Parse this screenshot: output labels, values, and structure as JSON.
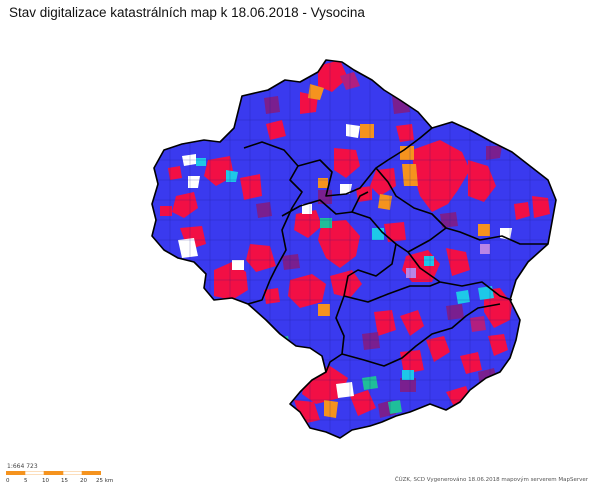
{
  "title": "Stav digitalizace katastrálních map k 18.06.2018 - Vysocina",
  "scale": {
    "ratio": "1:664 723",
    "ticks": [
      "0",
      "5",
      "10",
      "15",
      "20",
      "25 km"
    ]
  },
  "attribution": "ČÚZK, SCD Vygenerováno 18.06.2018 mapovým serverem MapServer",
  "colors": {
    "background": "#ffffff",
    "dominant": "#3a3aef",
    "red": "#f20f45",
    "purple": "#7a1f8f",
    "magenta": "#b21f7f",
    "orange": "#f5931e",
    "cyan": "#1ec8e8",
    "teal": "#1fbf9a",
    "lavender": "#b985e6",
    "white": "#ffffff",
    "district_border": "#000000",
    "parcel_lines": "#1b1b8a"
  },
  "map": {
    "region": "Vysocina",
    "layers": [
      "cadastral units",
      "district borders"
    ]
  }
}
